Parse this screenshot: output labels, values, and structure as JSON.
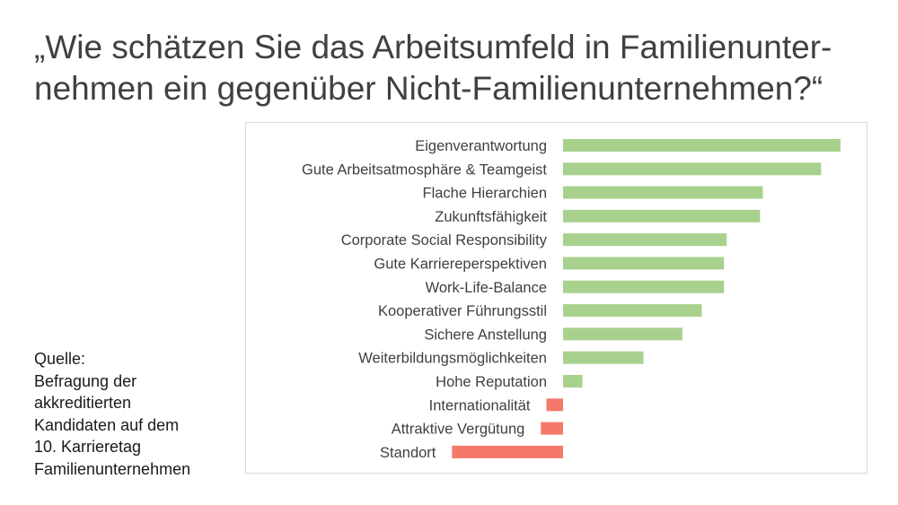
{
  "title": {
    "line1": "„Wie schätzen Sie das Arbeitsumfeld in Familienunter-",
    "line2": "nehmen ein gegenüber Nicht-Familienunternehmen?“"
  },
  "source": {
    "lines": [
      "Quelle:",
      "Befragung der",
      "akkreditierten",
      "Kandidaten auf dem",
      "10. Karrieretag",
      "Familienunternehmen"
    ]
  },
  "colors": {
    "positive": "#a9d18e",
    "negative": "#f4796b",
    "frame": "#d9d9d9",
    "text": "#404040"
  },
  "chart_data": {
    "type": "bar",
    "orientation": "horizontal",
    "categories": [
      "Eigenverantwortung",
      "Gute Arbeitsatmosphäre & Teamgeist",
      "Flache Hierarchien",
      "Zukunftsfähigkeit",
      "Corporate Social Responsibility",
      "Gute Karriereperspektiven",
      "Work-Life-Balance",
      "Kooperativer Führungsstil",
      "Sichere Anstellung",
      "Weiterbildungsmöglichkeiten",
      "Hohe Reputation",
      "Internationalität",
      "Attraktive Vergütung",
      "Standort"
    ],
    "values": [
      100,
      93,
      72,
      71,
      59,
      58,
      58,
      50,
      43,
      29,
      7,
      -6,
      -8,
      -40
    ],
    "xlim": [
      -45,
      102
    ],
    "grid": false,
    "legend": "none"
  }
}
